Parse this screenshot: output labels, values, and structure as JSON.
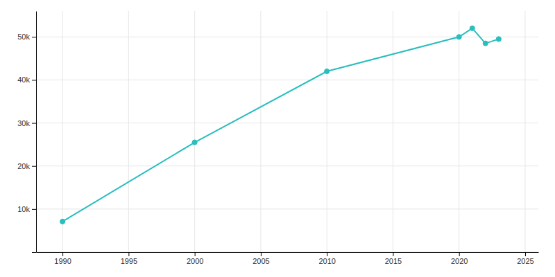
{
  "chart_data": {
    "type": "line",
    "x": [
      1990,
      2000,
      2010,
      2020,
      2021,
      2022,
      2023
    ],
    "values": [
      7100,
      25500,
      42000,
      50000,
      52000,
      48500,
      49500
    ],
    "color": "#2ABEBE",
    "marker": "circle",
    "xlim": [
      1988,
      2026
    ],
    "xticks": [
      1990,
      1995,
      2000,
      2005,
      2010,
      2015,
      2020,
      2025
    ],
    "ylim": [
      0,
      56000
    ],
    "yticks": [
      {
        "value": 0,
        "label": null
      },
      {
        "value": 10000,
        "label": "10k"
      },
      {
        "value": 20000,
        "label": "20k"
      },
      {
        "value": 30000,
        "label": "30k"
      },
      {
        "value": 40000,
        "label": "40k"
      },
      {
        "value": 50000,
        "label": "50k"
      }
    ],
    "grid": true
  }
}
